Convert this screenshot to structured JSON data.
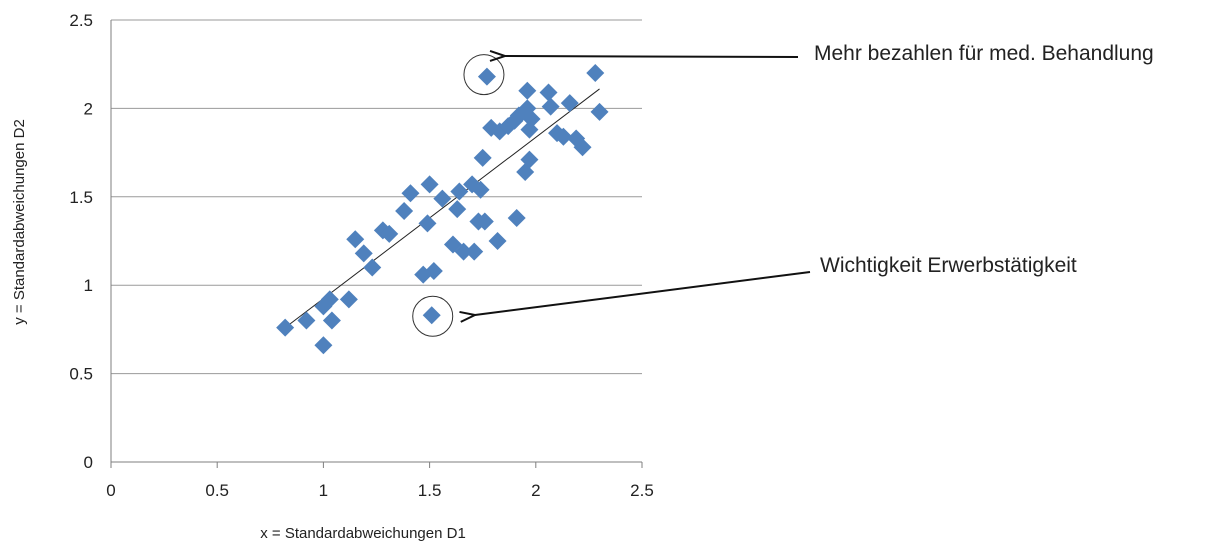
{
  "chart_data": {
    "type": "scatter",
    "title": "",
    "xlabel": "x = Standardabweichungen D1",
    "ylabel": "y = Standardabweichungen D2",
    "xlim": [
      0,
      2.5
    ],
    "ylim": [
      0,
      2.5
    ],
    "x_ticks": [
      "0",
      "0.5",
      "1",
      "1.5",
      "2",
      "2.5"
    ],
    "y_ticks": [
      "0",
      "0.5",
      "1",
      "1.5",
      "2",
      "2.5"
    ],
    "grid": "horizontal",
    "legend": "none",
    "marker_color": "#4f81bd",
    "marker_shape": "diamond",
    "trendline": {
      "type": "linear",
      "x": [
        0.82,
        2.3
      ],
      "y": [
        0.76,
        2.11
      ]
    },
    "points": [
      [
        0.82,
        0.76
      ],
      [
        0.92,
        0.8
      ],
      [
        1.0,
        0.66
      ],
      [
        1.0,
        0.88
      ],
      [
        1.03,
        0.92
      ],
      [
        1.04,
        0.8
      ],
      [
        1.12,
        0.92
      ],
      [
        1.15,
        1.26
      ],
      [
        1.19,
        1.18
      ],
      [
        1.23,
        1.1
      ],
      [
        1.28,
        1.31
      ],
      [
        1.31,
        1.29
      ],
      [
        1.38,
        1.42
      ],
      [
        1.41,
        1.52
      ],
      [
        1.47,
        1.06
      ],
      [
        1.49,
        1.35
      ],
      [
        1.5,
        1.57
      ],
      [
        1.51,
        0.83
      ],
      [
        1.52,
        1.08
      ],
      [
        1.56,
        1.49
      ],
      [
        1.61,
        1.23
      ],
      [
        1.63,
        1.43
      ],
      [
        1.64,
        1.53
      ],
      [
        1.66,
        1.19
      ],
      [
        1.7,
        1.57
      ],
      [
        1.71,
        1.19
      ],
      [
        1.73,
        1.36
      ],
      [
        1.74,
        1.54
      ],
      [
        1.75,
        1.72
      ],
      [
        1.76,
        1.36
      ],
      [
        1.77,
        2.18
      ],
      [
        1.79,
        1.89
      ],
      [
        1.82,
        1.25
      ],
      [
        1.83,
        1.87
      ],
      [
        1.87,
        1.9
      ],
      [
        1.9,
        1.93
      ],
      [
        1.91,
        1.38
      ],
      [
        1.92,
        1.96
      ],
      [
        1.95,
        1.64
      ],
      [
        1.96,
        2.1
      ],
      [
        1.96,
        2.0
      ],
      [
        1.97,
        1.71
      ],
      [
        1.97,
        1.88
      ],
      [
        1.98,
        1.94
      ],
      [
        2.06,
        2.09
      ],
      [
        2.07,
        2.01
      ],
      [
        2.1,
        1.86
      ],
      [
        2.13,
        1.84
      ],
      [
        2.16,
        2.03
      ],
      [
        2.19,
        1.83
      ],
      [
        2.22,
        1.78
      ],
      [
        2.28,
        2.2
      ],
      [
        2.3,
        1.98
      ]
    ],
    "annotations": [
      {
        "text": "Mehr bezahlen für med. Behandlung",
        "point": [
          1.77,
          2.18
        ]
      },
      {
        "text": "Wichtigkeit Erwerbstätigkeit",
        "point": [
          1.51,
          0.83
        ]
      }
    ]
  }
}
